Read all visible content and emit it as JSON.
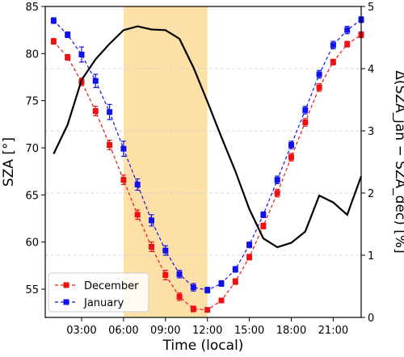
{
  "chart_data": {
    "type": "line",
    "xlabel": "Time (local)",
    "ylabel_left": "SZA [°]",
    "ylabel_right": "Δ(SZA_jan − SZA_dec) [%]",
    "xlim": [
      0.4,
      23.0
    ],
    "ylim_left": [
      52,
      85
    ],
    "ylim_right": [
      0,
      5
    ],
    "x_ticks": [
      {
        "value": 3,
        "label": "03:00"
      },
      {
        "value": 6,
        "label": "06:00"
      },
      {
        "value": 9,
        "label": "09:00"
      },
      {
        "value": 12,
        "label": "12:00"
      },
      {
        "value": 15,
        "label": "15:00"
      },
      {
        "value": 18,
        "label": "18:00"
      },
      {
        "value": 21,
        "label": "21:00"
      }
    ],
    "y_ticks_left": [
      55,
      60,
      65,
      70,
      75,
      80,
      85
    ],
    "y_ticks_right": [
      0,
      1,
      2,
      3,
      4,
      5
    ],
    "grid": "horizontal dashed",
    "highlight_band": {
      "x0": 6,
      "x1": 12,
      "color": "#fddfa8"
    },
    "legend": {
      "placement": "lower-left"
    },
    "series": [
      {
        "name": "December",
        "axis": "left",
        "color": "#ee1111",
        "style": "dashed line with square markers and error bars",
        "x": [
          1,
          2,
          3,
          4,
          5,
          6,
          7,
          8,
          9,
          10,
          11,
          12,
          13,
          14,
          15,
          16,
          17,
          18,
          19,
          20,
          21,
          22,
          23
        ],
        "y": [
          81.3,
          79.6,
          77.0,
          73.9,
          70.3,
          66.6,
          62.9,
          59.5,
          56.5,
          54.2,
          52.9,
          52.8,
          53.8,
          55.8,
          58.4,
          61.7,
          65.2,
          69.0,
          72.7,
          76.4,
          79.1,
          81.0,
          82.0
        ],
        "err": [
          0.3,
          0.3,
          0.4,
          0.5,
          0.5,
          0.5,
          0.5,
          0.5,
          0.5,
          0.4,
          0.3,
          0.2,
          0.2,
          0.3,
          0.3,
          0.3,
          0.4,
          0.4,
          0.4,
          0.4,
          0.3,
          0.3,
          0.3
        ]
      },
      {
        "name": "January",
        "axis": "left",
        "color": "#1111ee",
        "style": "dashed line with square markers and error bars",
        "x": [
          1,
          2,
          3,
          4,
          5,
          6,
          7,
          8,
          9,
          10,
          11,
          12,
          13,
          14,
          15,
          16,
          17,
          18,
          19,
          20,
          21,
          22,
          23
        ],
        "y": [
          83.5,
          82.0,
          79.9,
          77.1,
          73.8,
          69.9,
          66.1,
          62.3,
          59.1,
          56.6,
          55.2,
          54.9,
          55.6,
          57.1,
          59.7,
          62.9,
          66.6,
          70.3,
          74.0,
          77.8,
          80.9,
          82.5,
          83.6
        ],
        "err": [
          0.3,
          0.3,
          0.8,
          0.7,
          0.8,
          0.8,
          0.6,
          0.6,
          0.5,
          0.4,
          0.4,
          0.3,
          0.3,
          0.3,
          0.3,
          0.3,
          0.4,
          0.4,
          0.4,
          0.4,
          0.4,
          0.4,
          0.3
        ]
      },
      {
        "name": "Δ(SZA_jan − SZA_dec)",
        "axis": "right",
        "color": "#000000",
        "style": "solid line",
        "x": [
          1,
          2,
          3,
          4,
          5,
          6,
          7,
          8,
          9,
          10,
          11,
          12,
          13,
          14,
          15,
          16,
          17,
          18,
          19,
          20,
          21,
          22,
          23
        ],
        "y": [
          2.63,
          3.1,
          3.82,
          4.15,
          4.4,
          4.62,
          4.68,
          4.63,
          4.62,
          4.48,
          4.02,
          3.47,
          2.9,
          2.35,
          1.74,
          1.27,
          1.13,
          1.2,
          1.38,
          1.96,
          1.85,
          1.65,
          2.27
        ]
      }
    ]
  }
}
